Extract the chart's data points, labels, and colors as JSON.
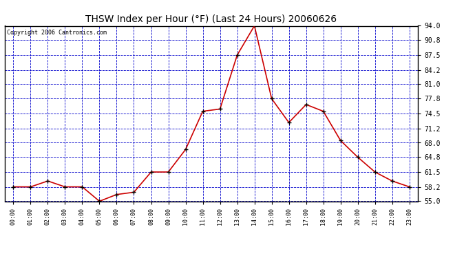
{
  "title": "THSW Index per Hour (°F) (Last 24 Hours) 20060626",
  "copyright_text": "Copyright 2006 Cantronics.com",
  "hours": [
    0,
    1,
    2,
    3,
    4,
    5,
    6,
    7,
    8,
    9,
    10,
    11,
    12,
    13,
    14,
    15,
    16,
    17,
    18,
    19,
    20,
    21,
    22,
    23
  ],
  "values": [
    58.2,
    58.2,
    59.5,
    58.2,
    58.2,
    55.0,
    56.5,
    57.0,
    61.5,
    61.5,
    66.5,
    75.0,
    75.5,
    87.5,
    94.0,
    77.8,
    72.5,
    76.5,
    75.0,
    68.5,
    64.8,
    61.5,
    59.5,
    58.2
  ],
  "ylim": [
    55.0,
    94.0
  ],
  "yticks": [
    55.0,
    58.2,
    61.5,
    64.8,
    68.0,
    71.2,
    74.5,
    77.8,
    81.0,
    84.2,
    87.5,
    90.8,
    94.0
  ],
  "fig_bg": "#ffffff",
  "plot_bg": "#ffffff",
  "line_color": "#cc0000",
  "marker_color": "#000000",
  "grid_color": "#0000cc",
  "title_color": "#000000",
  "copyright_color": "#000000",
  "tick_color": "#000000",
  "figsize": [
    6.9,
    3.75
  ],
  "dpi": 100
}
